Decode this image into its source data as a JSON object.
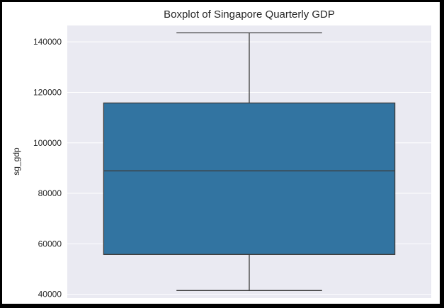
{
  "chart_data": {
    "type": "boxplot",
    "title": "Boxplot of Singapore Quarterly GDP",
    "xlabel": "",
    "ylabel": "sg_gdp",
    "ylim": [
      38500,
      146500
    ],
    "yticks": [
      40000,
      60000,
      80000,
      100000,
      120000,
      140000
    ],
    "ytick_labels": [
      "40000",
      "60000",
      "80000",
      "100000",
      "120000",
      "140000"
    ],
    "grid": true,
    "legend": "none",
    "series": [
      {
        "whisker_low": 41500,
        "q1": 55800,
        "median": 88900,
        "q3": 115800,
        "whisker_high": 143600
      }
    ],
    "colors": {
      "plot_bg": "#eaeaf2",
      "grid": "#ffffff",
      "box_fill": "#3274a1",
      "line": "#3d3d3d",
      "text": "#262626"
    }
  }
}
